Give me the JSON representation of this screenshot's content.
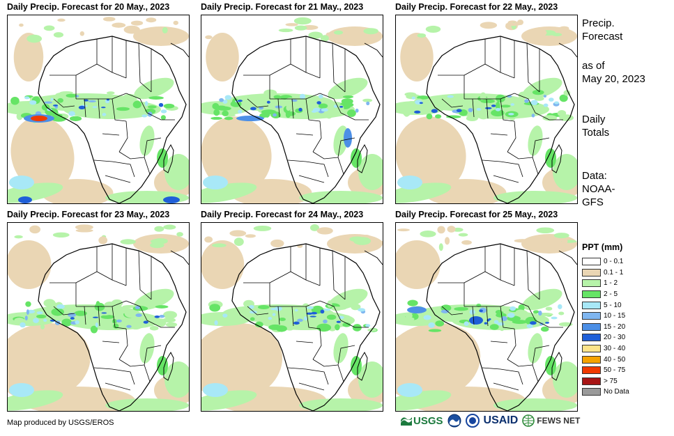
{
  "panels": [
    {
      "title": "Daily Precip. Forecast for 20 May., 2023"
    },
    {
      "title": "Daily Precip. Forecast for 21 May., 2023"
    },
    {
      "title": "Daily Precip. Forecast for 22 May., 2023"
    },
    {
      "title": "Daily Precip. Forecast for 23 May., 2023"
    },
    {
      "title": "Daily Precip. Forecast for 24 May., 2023"
    },
    {
      "title": "Daily Precip. Forecast for 25 May., 2023"
    }
  ],
  "side": {
    "title_line1": "Precip.",
    "title_line2": "Forecast",
    "asof_line1": "as of",
    "asof_line2": "May 20, 2023",
    "daily_line1": "Daily",
    "daily_line2": "Totals",
    "data_line1": "Data:",
    "data_line2": "NOAA-",
    "data_line3": "GFS"
  },
  "legend": {
    "title": "PPT (mm)",
    "items": [
      {
        "label": "0 - 0.1",
        "color": "#ffffff"
      },
      {
        "label": "0.1 - 1",
        "color": "#ead6b4"
      },
      {
        "label": "1 - 2",
        "color": "#b6f3a9"
      },
      {
        "label": "2 - 5",
        "color": "#66e466"
      },
      {
        "label": "5 - 10",
        "color": "#a8e8f7"
      },
      {
        "label": "10 - 15",
        "color": "#7fb6f0"
      },
      {
        "label": "15 - 20",
        "color": "#4c8fe6"
      },
      {
        "label": "20 - 30",
        "color": "#1f5fd8"
      },
      {
        "label": "30 - 40",
        "color": "#fde48a"
      },
      {
        "label": "40 - 50",
        "color": "#f5a300"
      },
      {
        "label": "50 - 75",
        "color": "#f03a00"
      },
      {
        "label": "> 75",
        "color": "#a81515"
      },
      {
        "label": "No Data",
        "color": "#9a9a9a"
      }
    ]
  },
  "credit": "Map produced by USGS/EROS",
  "logos": {
    "usgs": "USGS",
    "usaid": "USAID",
    "fewsnet": "FEWS NET"
  }
}
